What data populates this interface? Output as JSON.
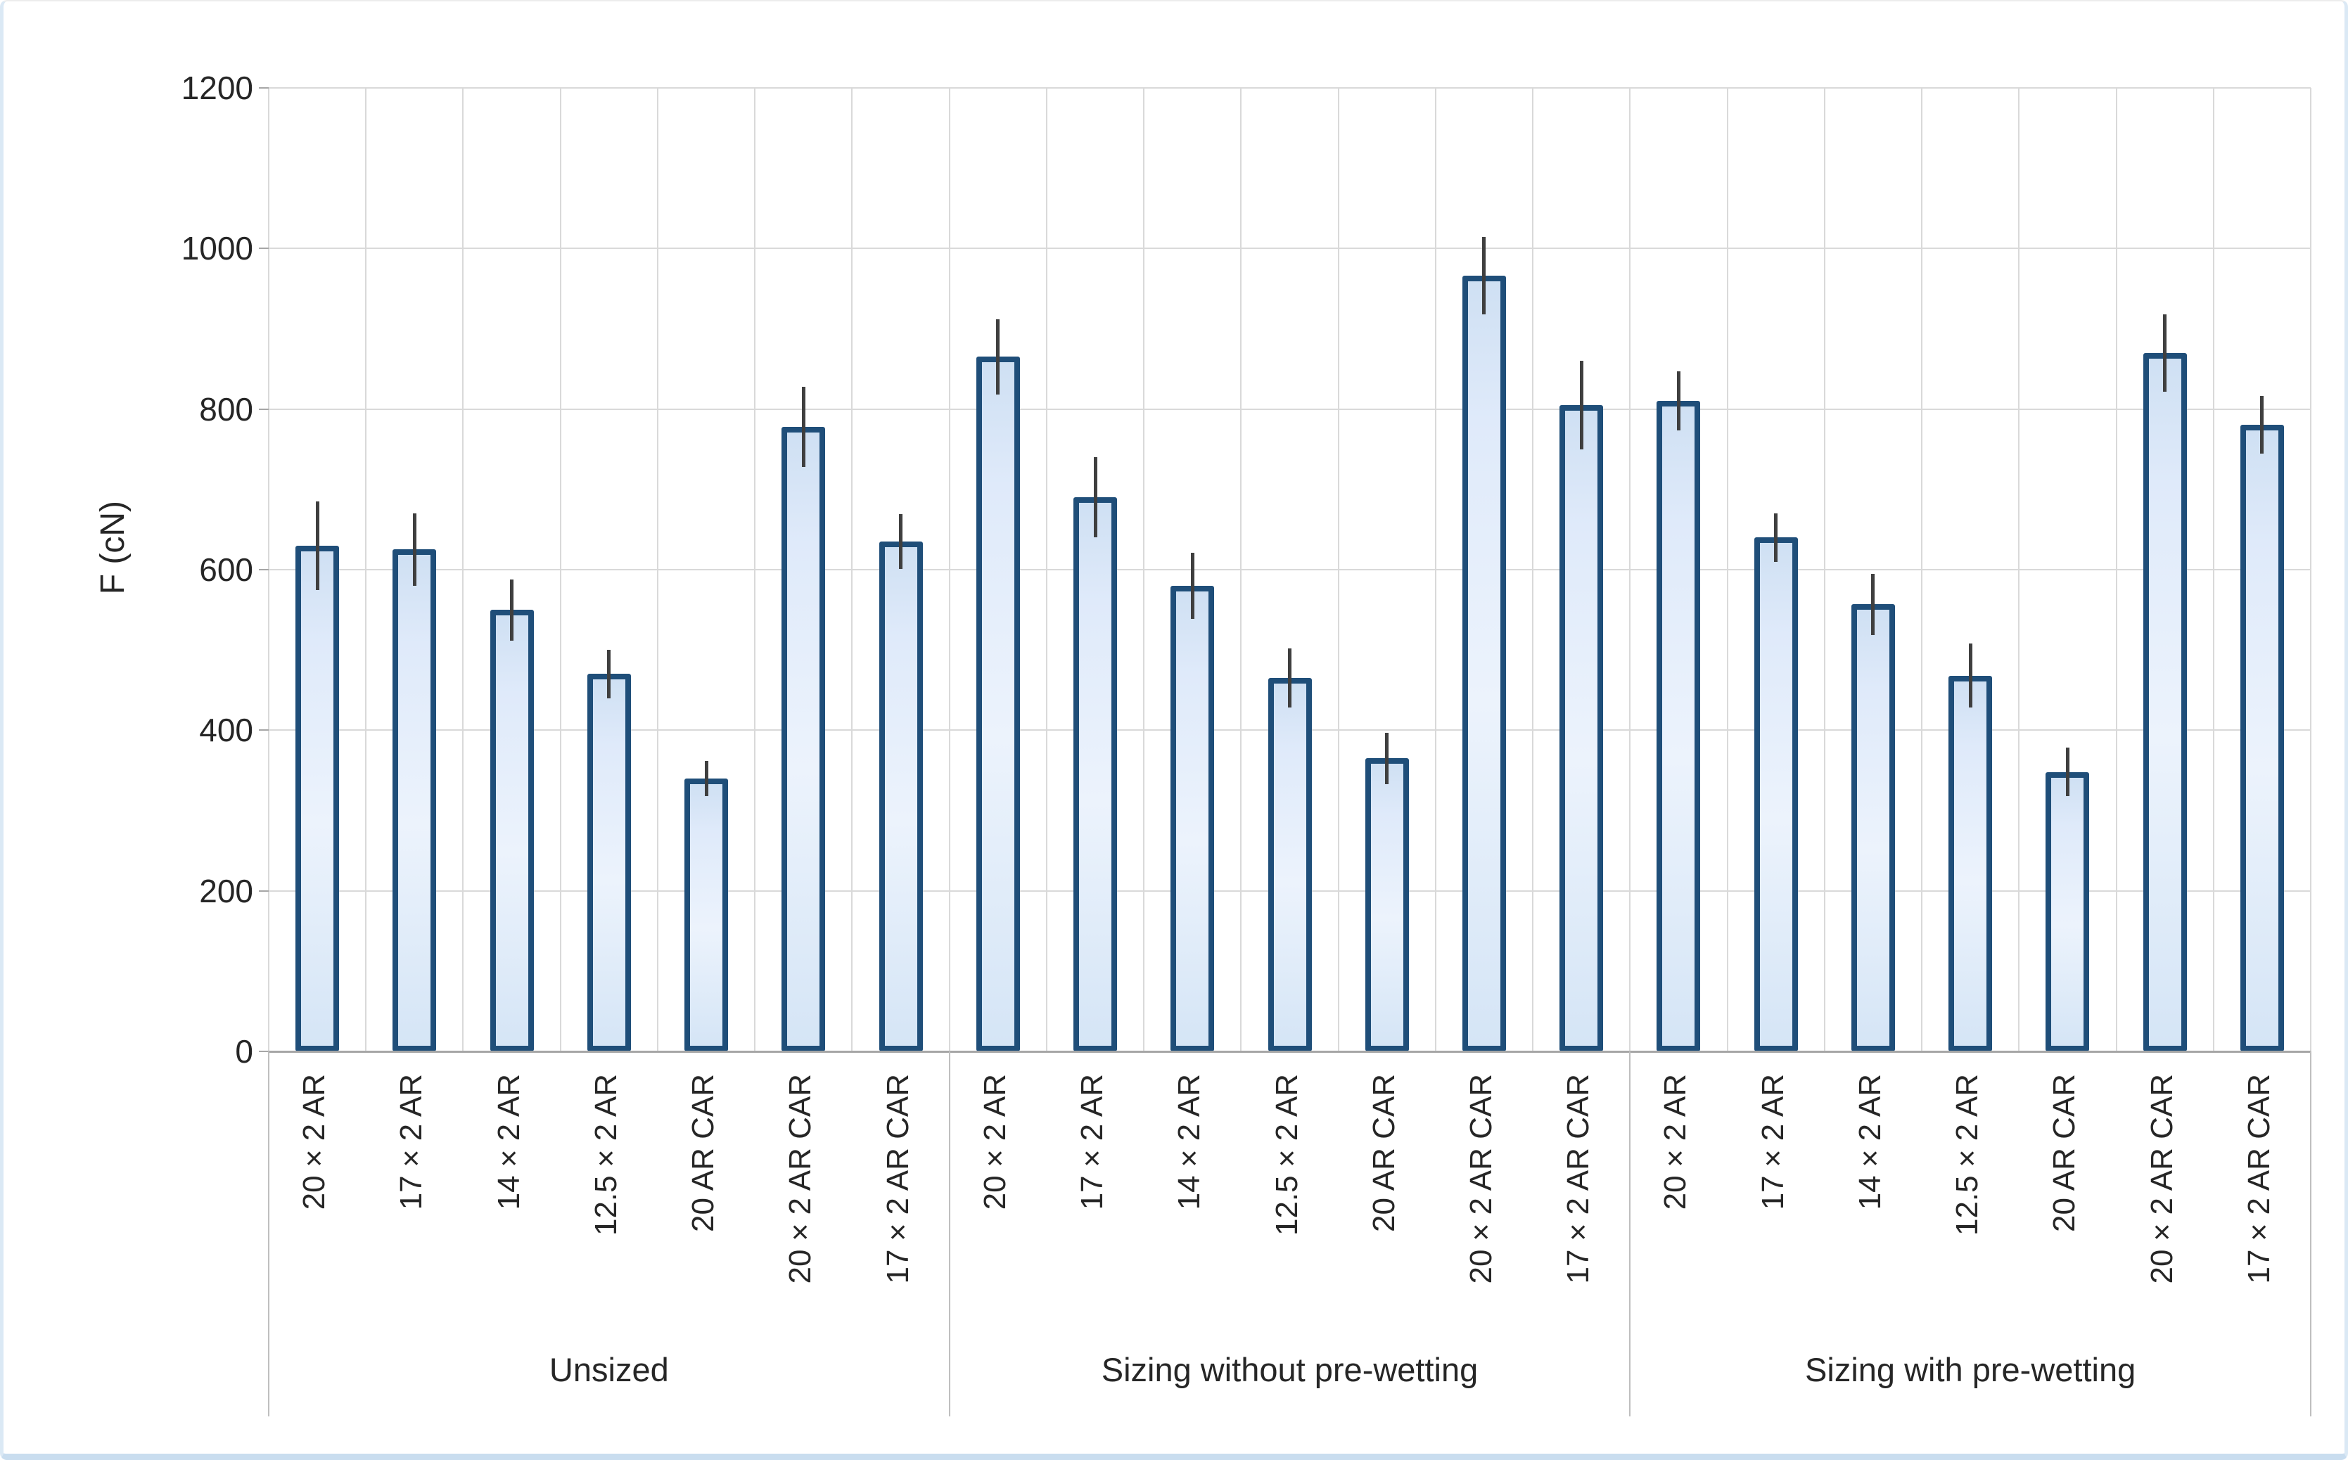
{
  "figure": {
    "kind": "excel-style clustered bar chart with error bars"
  },
  "chart_data": {
    "type": "bar",
    "title": "",
    "xlabel": "",
    "ylabel": "F (cN)",
    "ylim": [
      0,
      1200
    ],
    "y_tick_interval": 200,
    "y_ticks": [
      1200,
      1000,
      800,
      600,
      400,
      200,
      0
    ],
    "grid": true,
    "error_bars": true,
    "legend_position": "none",
    "groups": [
      "Unsized",
      "Sizing without pre-wetting",
      "Sizing with pre-wetting"
    ],
    "categories_per_group": [
      "20×2 AR",
      "17×2 AR",
      "14×2 AR",
      "12.5×2 AR",
      "20 AR CAR",
      "20×2 AR CAR",
      "17×2 AR CAR"
    ],
    "series": [
      {
        "name": "Unsized",
        "values": [
          630,
          625,
          550,
          470,
          340,
          778,
          635
        ],
        "errors": [
          55,
          45,
          38,
          30,
          22,
          50,
          34
        ]
      },
      {
        "name": "Sizing without pre-wetting",
        "values": [
          865,
          690,
          580,
          465,
          365,
          966,
          805
        ],
        "errors": [
          47,
          50,
          41,
          37,
          32,
          48,
          55
        ]
      },
      {
        "name": "Sizing with pre-wetting",
        "values": [
          810,
          640,
          557,
          468,
          348,
          870,
          780
        ],
        "errors": [
          37,
          30,
          38,
          40,
          30,
          48,
          36
        ]
      }
    ],
    "colors": {
      "bar_fill_light": "#ecf3fc",
      "bar_fill_dark": "#cfe0f3",
      "bar_border": "#1f4e79",
      "error_bar": "#3f3f3f",
      "gridline": "#d9d9d9",
      "axis_line": "#a6a6a6",
      "text": "#262626"
    }
  }
}
